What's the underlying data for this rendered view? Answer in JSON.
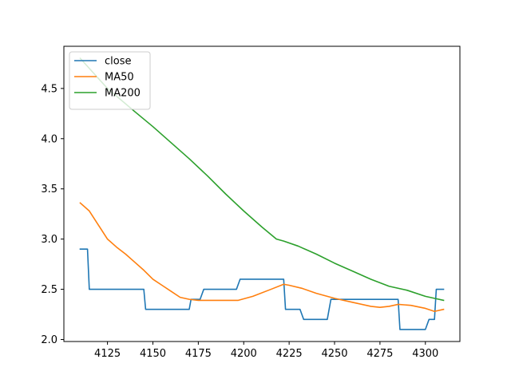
{
  "chart_data": {
    "type": "line",
    "title": "",
    "xlabel": "",
    "ylabel": "",
    "xlim": [
      4101,
      4319
    ],
    "ylim": [
      1.98,
      4.92
    ],
    "xticks": [
      4125,
      4150,
      4175,
      4200,
      4225,
      4250,
      4275,
      4300
    ],
    "yticks": [
      2.0,
      2.5,
      3.0,
      3.5,
      4.0,
      4.5
    ],
    "legend_position": "top-left",
    "grid": false,
    "series": [
      {
        "name": "close",
        "color": "#1f77b4",
        "points": [
          [
            4110,
            2.9
          ],
          [
            4114,
            2.9
          ],
          [
            4115,
            2.5
          ],
          [
            4145,
            2.5
          ],
          [
            4146,
            2.3
          ],
          [
            4170,
            2.3
          ],
          [
            4171,
            2.4
          ],
          [
            4176,
            2.4
          ],
          [
            4178,
            2.5
          ],
          [
            4196,
            2.5
          ],
          [
            4198,
            2.6
          ],
          [
            4222,
            2.6
          ],
          [
            4223,
            2.3
          ],
          [
            4231,
            2.3
          ],
          [
            4233,
            2.2
          ],
          [
            4246,
            2.2
          ],
          [
            4248,
            2.4
          ],
          [
            4285,
            2.4
          ],
          [
            4286,
            2.1
          ],
          [
            4300,
            2.1
          ],
          [
            4302,
            2.2
          ],
          [
            4305,
            2.2
          ],
          [
            4306,
            2.5
          ],
          [
            4310,
            2.5
          ]
        ]
      },
      {
        "name": "MA50",
        "color": "#ff7f0e",
        "points": [
          [
            4110,
            3.36
          ],
          [
            4115,
            3.28
          ],
          [
            4120,
            3.14
          ],
          [
            4125,
            3.0
          ],
          [
            4130,
            2.92
          ],
          [
            4135,
            2.85
          ],
          [
            4140,
            2.77
          ],
          [
            4145,
            2.69
          ],
          [
            4150,
            2.6
          ],
          [
            4155,
            2.54
          ],
          [
            4160,
            2.48
          ],
          [
            4165,
            2.42
          ],
          [
            4170,
            2.4
          ],
          [
            4175,
            2.39
          ],
          [
            4180,
            2.39
          ],
          [
            4190,
            2.39
          ],
          [
            4197,
            2.39
          ],
          [
            4205,
            2.43
          ],
          [
            4215,
            2.5
          ],
          [
            4222,
            2.55
          ],
          [
            4225,
            2.54
          ],
          [
            4232,
            2.51
          ],
          [
            4240,
            2.46
          ],
          [
            4250,
            2.41
          ],
          [
            4260,
            2.37
          ],
          [
            4270,
            2.33
          ],
          [
            4275,
            2.32
          ],
          [
            4280,
            2.33
          ],
          [
            4285,
            2.35
          ],
          [
            4292,
            2.34
          ],
          [
            4300,
            2.31
          ],
          [
            4305,
            2.28
          ],
          [
            4310,
            2.3
          ]
        ]
      },
      {
        "name": "MA200",
        "color": "#2ca02c",
        "points": [
          [
            4110,
            4.8
          ],
          [
            4125,
            4.5
          ],
          [
            4140,
            4.27
          ],
          [
            4150,
            4.12
          ],
          [
            4160,
            3.96
          ],
          [
            4170,
            3.8
          ],
          [
            4180,
            3.63
          ],
          [
            4190,
            3.45
          ],
          [
            4200,
            3.28
          ],
          [
            4210,
            3.12
          ],
          [
            4218,
            3.0
          ],
          [
            4222,
            2.98
          ],
          [
            4230,
            2.93
          ],
          [
            4240,
            2.85
          ],
          [
            4250,
            2.76
          ],
          [
            4260,
            2.68
          ],
          [
            4270,
            2.6
          ],
          [
            4280,
            2.53
          ],
          [
            4290,
            2.49
          ],
          [
            4300,
            2.43
          ],
          [
            4305,
            2.41
          ],
          [
            4310,
            2.39
          ]
        ]
      }
    ]
  }
}
